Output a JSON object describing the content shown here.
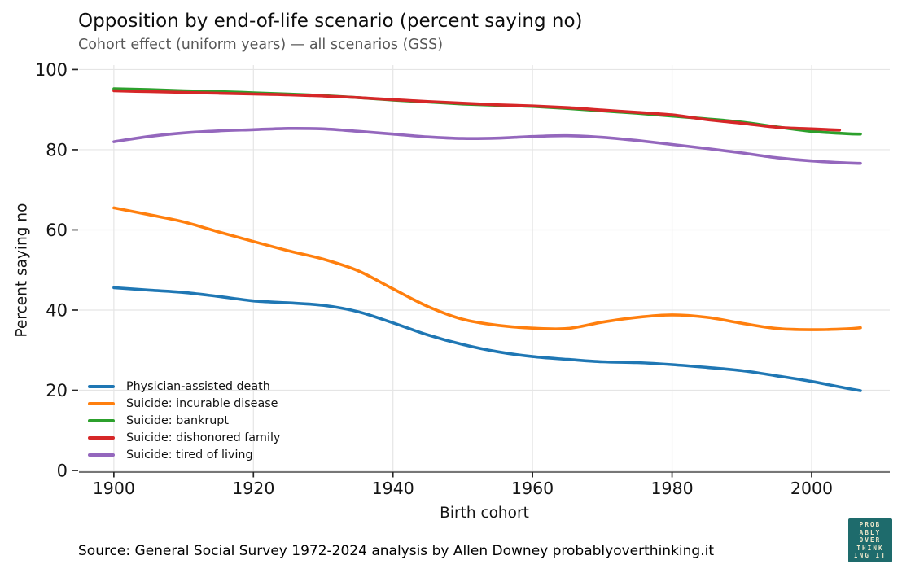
{
  "title": "Opposition by end-of-life scenario (percent saying no)",
  "subtitle": "Cohort effect (uniform years) — all scenarios (GSS)",
  "source_note": "Source: General Social Survey 1972-2024 analysis by Allen Downey probablyoverthinking.it",
  "logo": {
    "lines": [
      "PROB",
      "ABLY",
      "OVER",
      "THINK",
      "ING IT"
    ],
    "bg_color": "#1e6b6c",
    "fg_color": "#efe8cb"
  },
  "chart_data": {
    "type": "line",
    "title": "Opposition by end-of-life scenario (percent saying no)",
    "subtitle": "Cohort effect (uniform years) — all scenarios (GSS)",
    "xlabel": "Birth cohort",
    "ylabel": "Percent saying no",
    "xlim": [
      1895,
      2011.2
    ],
    "ylim": [
      -0.4,
      101.1
    ],
    "xticks": [
      1900,
      1920,
      1940,
      1960,
      1980,
      2000
    ],
    "yticks": [
      0,
      20,
      40,
      60,
      80,
      100
    ],
    "grid": true,
    "legend_position": "lower-left",
    "colors": {
      "grid": "#e5e5e5",
      "spine": "#262626",
      "tick_label": "#141414"
    },
    "series": [
      {
        "name": "Physician-assisted death",
        "color": "#1f77b4",
        "x": [
          1900,
          1905,
          1910,
          1915,
          1920,
          1925,
          1930,
          1935,
          1940,
          1945,
          1950,
          1955,
          1960,
          1965,
          1970,
          1975,
          1980,
          1985,
          1990,
          1995,
          2000,
          2005,
          2007
        ],
        "y": [
          45.6,
          45.0,
          44.4,
          43.4,
          42.3,
          41.8,
          41.2,
          39.6,
          36.8,
          33.8,
          31.4,
          29.6,
          28.4,
          27.7,
          27.1,
          26.9,
          26.4,
          25.7,
          24.9,
          23.6,
          22.2,
          20.5,
          19.9
        ]
      },
      {
        "name": "Suicide: incurable disease",
        "color": "#ff7f0e",
        "x": [
          1900,
          1905,
          1910,
          1915,
          1920,
          1925,
          1930,
          1935,
          1940,
          1945,
          1950,
          1955,
          1960,
          1965,
          1970,
          1975,
          1980,
          1985,
          1990,
          1995,
          2000,
          2005,
          2007
        ],
        "y": [
          65.5,
          63.8,
          62.0,
          59.5,
          57.1,
          54.8,
          52.7,
          49.8,
          45.3,
          40.9,
          37.7,
          36.2,
          35.5,
          35.4,
          37.0,
          38.2,
          38.8,
          38.2,
          36.7,
          35.4,
          35.1,
          35.3,
          35.6
        ]
      },
      {
        "name": "Suicide: bankrupt",
        "color": "#2ca02c",
        "x": [
          1900,
          1905,
          1910,
          1915,
          1920,
          1925,
          1930,
          1935,
          1940,
          1945,
          1950,
          1955,
          1960,
          1965,
          1970,
          1975,
          1980,
          1985,
          1990,
          1995,
          2000,
          2005,
          2007
        ],
        "y": [
          95.2,
          95.0,
          94.7,
          94.5,
          94.2,
          93.9,
          93.5,
          93.0,
          92.4,
          91.9,
          91.4,
          91.1,
          90.8,
          90.3,
          89.7,
          89.1,
          88.4,
          87.7,
          86.9,
          85.7,
          84.6,
          84.0,
          83.9
        ]
      },
      {
        "name": "Suicide: dishonored family",
        "color": "#d62728",
        "x": [
          1900,
          1905,
          1910,
          1915,
          1920,
          1925,
          1930,
          1935,
          1940,
          1945,
          1950,
          1955,
          1960,
          1965,
          1970,
          1975,
          1980,
          1985,
          1990,
          1995,
          2000,
          2004
        ],
        "y": [
          94.7,
          94.5,
          94.3,
          94.1,
          93.9,
          93.7,
          93.4,
          93.0,
          92.5,
          92.0,
          91.6,
          91.2,
          90.9,
          90.5,
          89.9,
          89.3,
          88.7,
          87.5,
          86.6,
          85.6,
          85.2,
          84.9
        ]
      },
      {
        "name": "Suicide: tired of living",
        "color": "#9467bd",
        "x": [
          1900,
          1905,
          1910,
          1915,
          1920,
          1925,
          1930,
          1935,
          1940,
          1945,
          1950,
          1955,
          1960,
          1965,
          1970,
          1975,
          1980,
          1985,
          1990,
          1995,
          2000,
          2005,
          2007
        ],
        "y": [
          82.0,
          83.3,
          84.2,
          84.7,
          85.0,
          85.3,
          85.2,
          84.6,
          83.9,
          83.2,
          82.8,
          82.9,
          83.3,
          83.5,
          83.1,
          82.3,
          81.3,
          80.3,
          79.2,
          78.0,
          77.2,
          76.7,
          76.6
        ]
      }
    ]
  }
}
